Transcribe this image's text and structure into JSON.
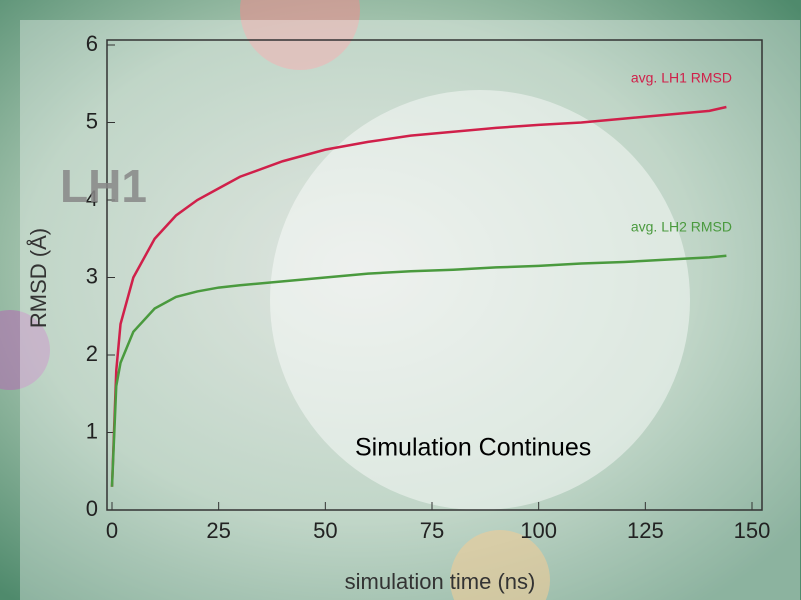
{
  "chart_data": {
    "type": "line",
    "x_label": "simulation time (ns)",
    "y_label": "RMSD (Å)",
    "x": [
      0,
      1,
      2,
      5,
      10,
      15,
      20,
      25,
      30,
      40,
      50,
      60,
      70,
      80,
      90,
      100,
      110,
      120,
      130,
      140,
      144
    ],
    "series": [
      {
        "name": "avg. LH1 RMSD",
        "color": "#d0204a",
        "values": [
          0.3,
          1.8,
          2.4,
          3.0,
          3.5,
          3.8,
          4.0,
          4.15,
          4.3,
          4.5,
          4.65,
          4.75,
          4.83,
          4.88,
          4.93,
          4.97,
          5.0,
          5.05,
          5.1,
          5.15,
          5.2
        ]
      },
      {
        "name": "avg. LH2 RMSD",
        "color": "#4a9a3e",
        "values": [
          0.3,
          1.6,
          1.9,
          2.3,
          2.6,
          2.75,
          2.82,
          2.87,
          2.9,
          2.95,
          3.0,
          3.05,
          3.08,
          3.1,
          3.13,
          3.15,
          3.18,
          3.2,
          3.23,
          3.26,
          3.28
        ]
      }
    ],
    "xlim": [
      0,
      150
    ],
    "ylim": [
      0,
      6
    ],
    "xticks": [
      0,
      25,
      50,
      75,
      100,
      125,
      150
    ],
    "yticks": [
      0,
      1,
      2,
      3,
      4,
      5,
      6
    ],
    "annotations": [
      "LH1",
      "Simulation Continues"
    ]
  }
}
